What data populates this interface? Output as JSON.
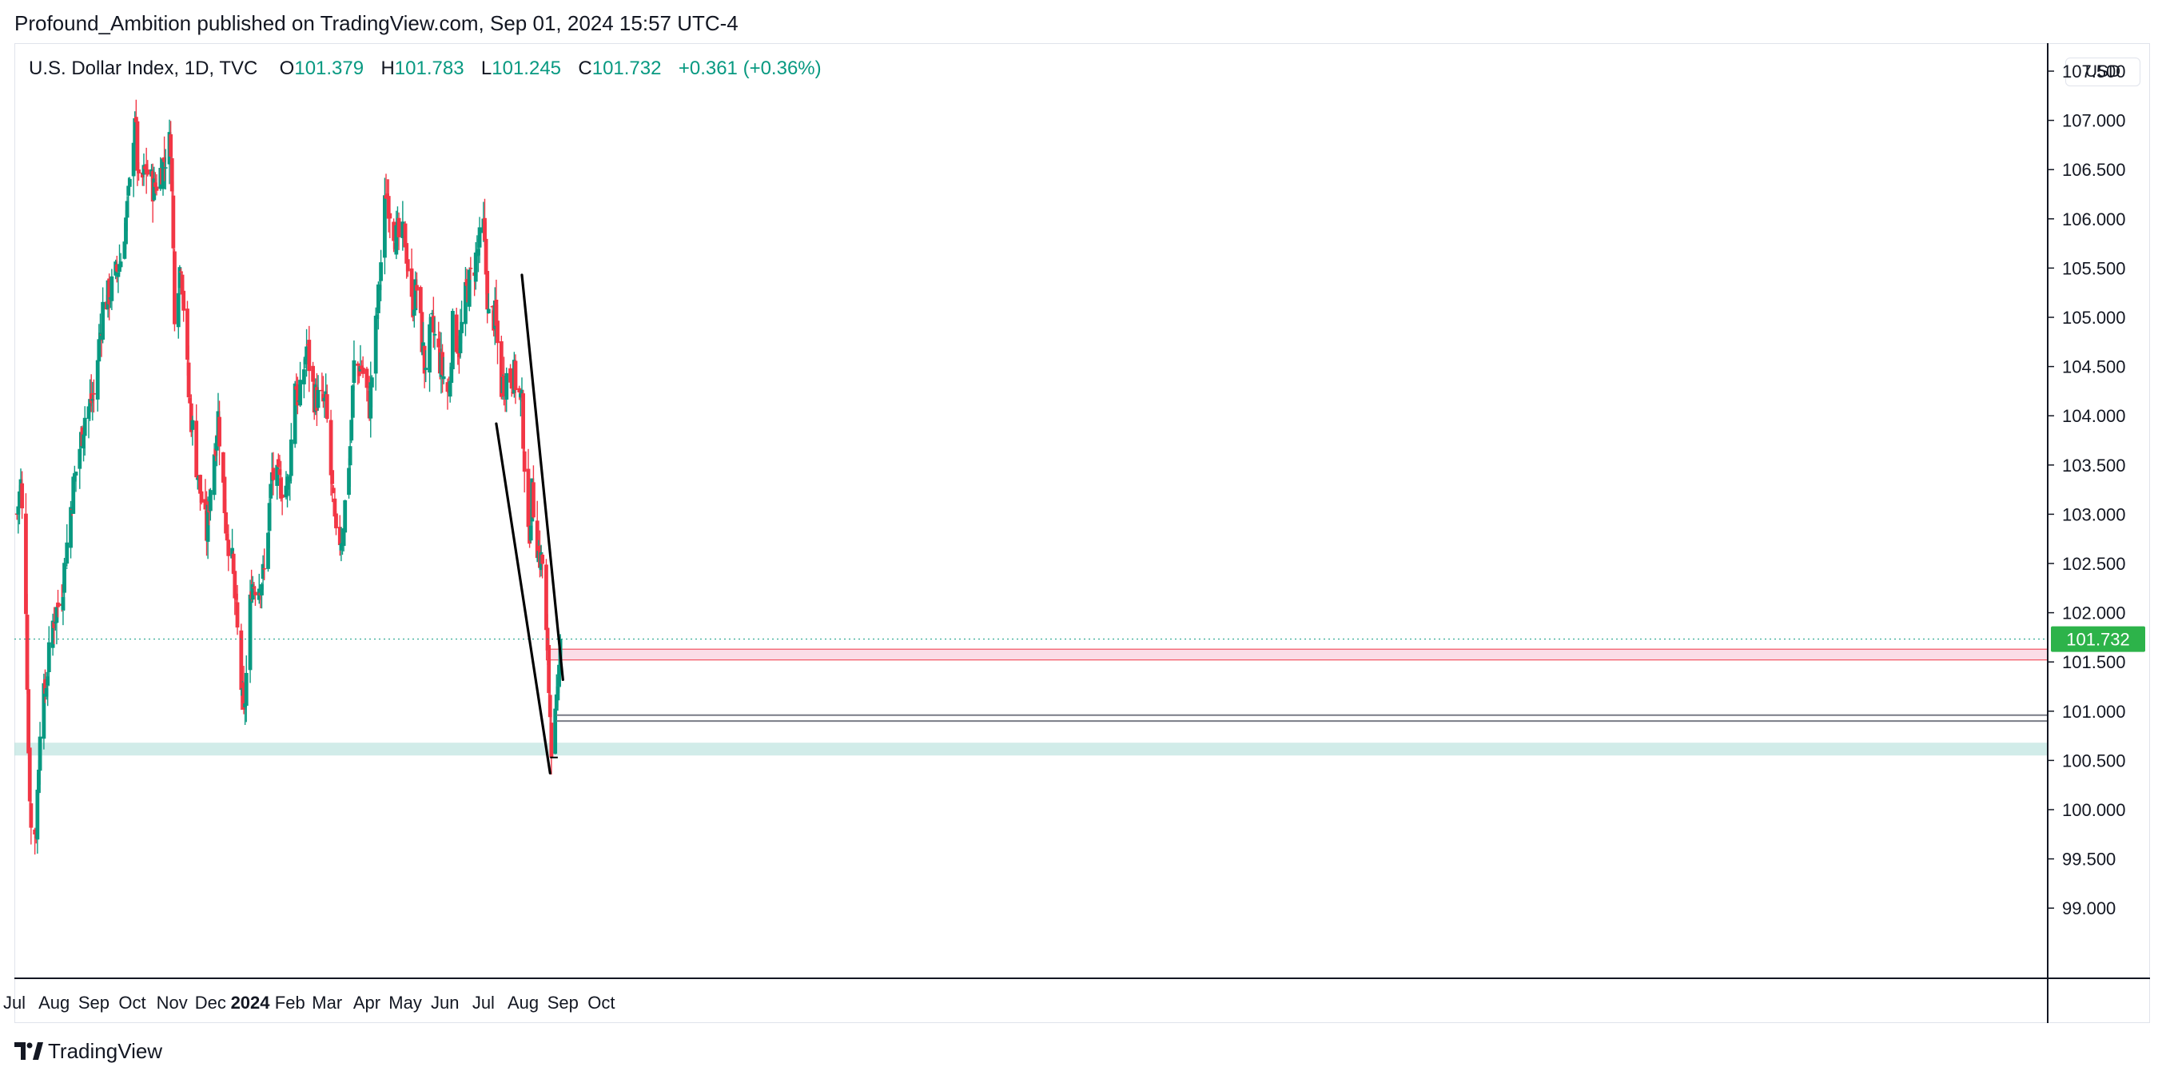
{
  "header": {
    "published": "Profound_Ambition published on TradingView.com, Sep 01, 2024 15:57 UTC-4"
  },
  "legend": {
    "symbol": "U.S. Dollar Index, 1D, TVC",
    "open_label": "O",
    "open": "101.379",
    "high_label": "H",
    "high": "101.783",
    "low_label": "L",
    "low": "101.245",
    "close_label": "C",
    "close": "101.732",
    "change": "+0.361 (+0.36%)"
  },
  "currency_button": "USD",
  "footer": {
    "brand": "TradingView"
  },
  "colors": {
    "up": "#089981",
    "down": "#f23645",
    "support_zone": "#b2dfdb",
    "resistance_zone": "#f8bbd0",
    "last_price": "#2db34a"
  },
  "chart_data": {
    "type": "candlestick",
    "symbol": "U.S. Dollar Index",
    "interval": "1D",
    "y_ticks": [
      "107.500",
      "107.000",
      "106.500",
      "106.000",
      "105.500",
      "105.000",
      "104.500",
      "104.000",
      "103.500",
      "103.000",
      "102.500",
      "102.000",
      "101.500",
      "101.000",
      "100.500",
      "100.000",
      "99.500",
      "99.000"
    ],
    "x_ticks": [
      {
        "label": "Jul",
        "date": "2023-07-01"
      },
      {
        "label": "Aug",
        "date": "2023-08-01"
      },
      {
        "label": "Sep",
        "date": "2023-09-01"
      },
      {
        "label": "Oct",
        "date": "2023-10-01"
      },
      {
        "label": "Nov",
        "date": "2023-11-01"
      },
      {
        "label": "Dec",
        "date": "2023-12-01"
      },
      {
        "label": "2024",
        "date": "2024-01-01",
        "bold": true
      },
      {
        "label": "Feb",
        "date": "2024-02-01"
      },
      {
        "label": "Mar",
        "date": "2024-03-01"
      },
      {
        "label": "Apr",
        "date": "2024-04-01"
      },
      {
        "label": "May",
        "date": "2024-05-01"
      },
      {
        "label": "Jun",
        "date": "2024-06-01"
      },
      {
        "label": "Jul",
        "date": "2024-07-01"
      },
      {
        "label": "Aug",
        "date": "2024-08-01"
      },
      {
        "label": "Sep",
        "date": "2024-09-01"
      },
      {
        "label": "Oct",
        "date": "2024-10-01"
      }
    ],
    "ylim": [
      98.8,
      107.9
    ],
    "last_price": "101.732",
    "close_anchors": [
      [
        "2023-07-03",
        103.0
      ],
      [
        "2023-07-06",
        103.3
      ],
      [
        "2023-07-10",
        102.1
      ],
      [
        "2023-07-12",
        100.6
      ],
      [
        "2023-07-14",
        99.8
      ],
      [
        "2023-07-18",
        99.8
      ],
      [
        "2023-07-21",
        100.9
      ],
      [
        "2023-07-25",
        101.2
      ],
      [
        "2023-07-31",
        101.9
      ],
      [
        "2023-08-07",
        102.2
      ],
      [
        "2023-08-15",
        103.2
      ],
      [
        "2023-08-25",
        104.0
      ],
      [
        "2023-09-01",
        104.2
      ],
      [
        "2023-09-08",
        105.1
      ],
      [
        "2023-09-15",
        105.3
      ],
      [
        "2023-09-22",
        105.6
      ],
      [
        "2023-09-29",
        106.3
      ],
      [
        "2023-10-03",
        107.1
      ],
      [
        "2023-10-06",
        106.3
      ],
      [
        "2023-10-12",
        106.5
      ],
      [
        "2023-10-18",
        106.3
      ],
      [
        "2023-10-26",
        106.6
      ],
      [
        "2023-10-31",
        106.8
      ],
      [
        "2023-11-03",
        105.1
      ],
      [
        "2023-11-08",
        105.6
      ],
      [
        "2023-11-14",
        104.2
      ],
      [
        "2023-11-21",
        103.4
      ],
      [
        "2023-11-28",
        102.8
      ],
      [
        "2023-12-01",
        103.3
      ],
      [
        "2023-12-07",
        104.0
      ],
      [
        "2023-12-13",
        102.9
      ],
      [
        "2023-12-18",
        102.5
      ],
      [
        "2023-12-27",
        100.9
      ],
      [
        "2024-01-02",
        102.3
      ],
      [
        "2024-01-08",
        102.3
      ],
      [
        "2024-01-12",
        102.4
      ],
      [
        "2024-01-18",
        103.4
      ],
      [
        "2024-01-24",
        103.3
      ],
      [
        "2024-01-31",
        103.3
      ],
      [
        "2024-02-05",
        104.4
      ],
      [
        "2024-02-08",
        104.1
      ],
      [
        "2024-02-14",
        104.7
      ],
      [
        "2024-02-20",
        104.2
      ],
      [
        "2024-02-29",
        104.1
      ],
      [
        "2024-03-08",
        102.7
      ],
      [
        "2024-03-13",
        102.8
      ],
      [
        "2024-03-19",
        103.7
      ],
      [
        "2024-03-22",
        104.5
      ],
      [
        "2024-03-28",
        104.5
      ],
      [
        "2024-04-03",
        104.1
      ],
      [
        "2024-04-10",
        105.2
      ],
      [
        "2024-04-16",
        106.3
      ],
      [
        "2024-04-24",
        105.8
      ],
      [
        "2024-05-01",
        105.8
      ],
      [
        "2024-05-06",
        105.1
      ],
      [
        "2024-05-10",
        105.3
      ],
      [
        "2024-05-16",
        104.5
      ],
      [
        "2024-05-22",
        104.9
      ],
      [
        "2024-05-29",
        104.5
      ],
      [
        "2024-06-04",
        104.2
      ],
      [
        "2024-06-07",
        104.9
      ],
      [
        "2024-06-12",
        104.7
      ],
      [
        "2024-06-17",
        105.2
      ],
      [
        "2024-06-25",
        105.6
      ],
      [
        "2024-07-01",
        105.9
      ],
      [
        "2024-07-05",
        105.0
      ],
      [
        "2024-07-10",
        105.0
      ],
      [
        "2024-07-15",
        104.3
      ],
      [
        "2024-07-19",
        104.4
      ],
      [
        "2024-07-25",
        104.4
      ],
      [
        "2024-07-31",
        104.1
      ],
      [
        "2024-08-05",
        102.7
      ],
      [
        "2024-08-08",
        103.2
      ],
      [
        "2024-08-13",
        102.6
      ],
      [
        "2024-08-16",
        102.5
      ],
      [
        "2024-08-20",
        101.5
      ],
      [
        "2024-08-23",
        100.7
      ],
      [
        "2024-08-26",
        100.9
      ],
      [
        "2024-08-28",
        101.1
      ],
      [
        "2024-08-30",
        101.732
      ]
    ],
    "trendlines": [
      {
        "from": [
          "2024-07-31",
          105.43
        ],
        "to": [
          "2024-09-01",
          101.32
        ],
        "color": "#000000"
      },
      {
        "from": [
          "2024-07-11",
          103.92
        ],
        "to": [
          "2024-08-22",
          100.37
        ],
        "color": "#000000"
      }
    ],
    "zones": [
      {
        "name": "support",
        "from": 100.55,
        "to": 100.68,
        "start": "2023-07-01",
        "color": "#b2dfdb"
      },
      {
        "name": "resistance",
        "from": 101.52,
        "to": 101.63,
        "start": "2024-08-19",
        "color": "#f8bbd0"
      }
    ],
    "horizontal_lines": [
      {
        "price": 100.96,
        "start": "2024-08-27"
      },
      {
        "price": 100.9,
        "start": "2024-08-27"
      },
      {
        "price": 100.53,
        "start": "2024-08-22",
        "end": "2024-08-28"
      }
    ]
  }
}
